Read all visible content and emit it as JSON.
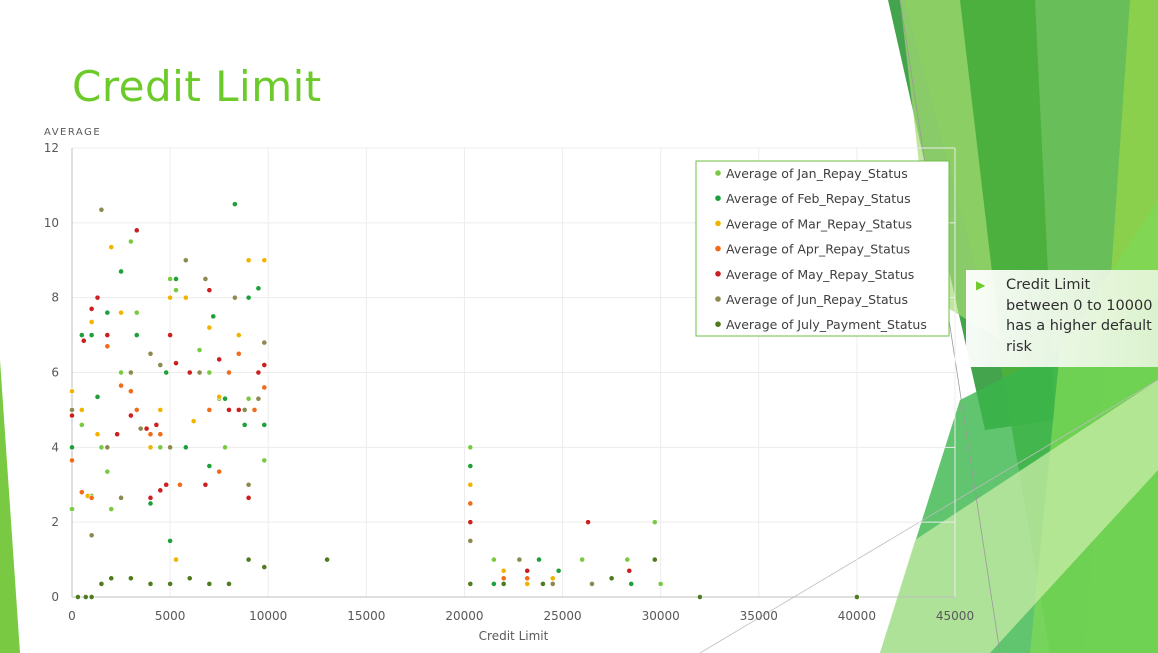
{
  "slide": {
    "title": "Credit Limit",
    "callout_text": "Credit Limit between 0 to 10000 has a higher default risk"
  },
  "colors": {
    "title": "#6ccb2b",
    "deco_dark": "#2f9a3a",
    "deco_mid": "#4db33c",
    "deco_light": "#8fd24a",
    "deco_pale": "#c9eca8"
  },
  "chart_data": {
    "type": "scatter",
    "title": "",
    "ylabel": "AVERAGE",
    "xlabel": "Credit Limit",
    "xlim": [
      0,
      45000
    ],
    "ylim": [
      0,
      12
    ],
    "x_ticks": [
      "0",
      "5000",
      "10000",
      "15000",
      "20000",
      "25000",
      "30000",
      "35000",
      "40000",
      "45000"
    ],
    "y_ticks": [
      "0",
      "2",
      "4",
      "6",
      "8",
      "10",
      "12"
    ],
    "grid": true,
    "legend_position": "top-right",
    "series": [
      {
        "name": "Average of Jan_Repay_Status",
        "color": "#7ac943",
        "points": [
          [
            0,
            2.35
          ],
          [
            500,
            4.6
          ],
          [
            1000,
            2.7
          ],
          [
            1500,
            4.0
          ],
          [
            1800,
            3.35
          ],
          [
            2000,
            2.35
          ],
          [
            2500,
            6.0
          ],
          [
            3000,
            9.5
          ],
          [
            3300,
            7.6
          ],
          [
            4000,
            4.0
          ],
          [
            4500,
            4.0
          ],
          [
            5000,
            8.5
          ],
          [
            5300,
            8.2
          ],
          [
            6500,
            6.6
          ],
          [
            7000,
            6.0
          ],
          [
            7500,
            5.3
          ],
          [
            7800,
            4.0
          ],
          [
            8000,
            6.0
          ],
          [
            9000,
            5.3
          ],
          [
            9800,
            3.65
          ],
          [
            20300,
            4.0
          ],
          [
            21500,
            1.0
          ],
          [
            23800,
            1.0
          ],
          [
            26000,
            1.0
          ],
          [
            28300,
            1.0
          ],
          [
            29700,
            2.0
          ],
          [
            30000,
            0.35
          ]
        ]
      },
      {
        "name": "Average of Feb_Repay_Status",
        "color": "#1ea03a",
        "points": [
          [
            0,
            4.0
          ],
          [
            500,
            7.0
          ],
          [
            1000,
            7.0
          ],
          [
            1300,
            5.35
          ],
          [
            1800,
            7.6
          ],
          [
            2500,
            8.7
          ],
          [
            3300,
            7.0
          ],
          [
            4000,
            2.5
          ],
          [
            4800,
            6.0
          ],
          [
            5000,
            1.5
          ],
          [
            5300,
            8.5
          ],
          [
            5800,
            4.0
          ],
          [
            6500,
            6.0
          ],
          [
            7000,
            3.5
          ],
          [
            7200,
            7.5
          ],
          [
            7800,
            5.3
          ],
          [
            8300,
            10.5
          ],
          [
            8800,
            4.6
          ],
          [
            9000,
            8.0
          ],
          [
            9500,
            8.25
          ],
          [
            9800,
            4.6
          ],
          [
            20300,
            3.5
          ],
          [
            21500,
            0.35
          ],
          [
            23800,
            1.0
          ],
          [
            24800,
            0.7
          ],
          [
            28500,
            0.35
          ]
        ]
      },
      {
        "name": "Average of Mar_Repay_Status",
        "color": "#f0b400",
        "points": [
          [
            0,
            5.5
          ],
          [
            500,
            5.0
          ],
          [
            800,
            2.7
          ],
          [
            1000,
            7.35
          ],
          [
            1300,
            4.35
          ],
          [
            2000,
            9.35
          ],
          [
            2500,
            7.6
          ],
          [
            3000,
            6.0
          ],
          [
            3300,
            5.0
          ],
          [
            4000,
            4.0
          ],
          [
            4500,
            5.0
          ],
          [
            5000,
            8.0
          ],
          [
            5300,
            1.0
          ],
          [
            5800,
            8.0
          ],
          [
            6200,
            4.7
          ],
          [
            7000,
            7.2
          ],
          [
            7500,
            5.35
          ],
          [
            8000,
            6.0
          ],
          [
            8500,
            7.0
          ],
          [
            9000,
            9.0
          ],
          [
            9800,
            9.0
          ],
          [
            20300,
            3.0
          ],
          [
            22000,
            0.7
          ],
          [
            23200,
            0.35
          ],
          [
            24500,
            0.5
          ]
        ]
      },
      {
        "name": "Average of Apr_Repay_Status",
        "color": "#f26b1a",
        "points": [
          [
            0,
            3.65
          ],
          [
            500,
            2.8
          ],
          [
            1000,
            2.65
          ],
          [
            1800,
            6.7
          ],
          [
            2500,
            5.65
          ],
          [
            3000,
            5.5
          ],
          [
            3300,
            5.0
          ],
          [
            4000,
            4.35
          ],
          [
            4500,
            4.35
          ],
          [
            5000,
            4.0
          ],
          [
            5500,
            3.0
          ],
          [
            6500,
            6.0
          ],
          [
            7000,
            5.0
          ],
          [
            7500,
            3.35
          ],
          [
            8000,
            6.0
          ],
          [
            8500,
            6.5
          ],
          [
            9300,
            5.0
          ],
          [
            9800,
            5.6
          ],
          [
            20300,
            2.5
          ],
          [
            22000,
            0.5
          ],
          [
            23200,
            0.5
          ]
        ]
      },
      {
        "name": "Average of May_Repay_Status",
        "color": "#cc1f1f",
        "points": [
          [
            0,
            4.85
          ],
          [
            600,
            6.85
          ],
          [
            1000,
            7.7
          ],
          [
            1300,
            8.0
          ],
          [
            1800,
            7.0
          ],
          [
            2300,
            4.35
          ],
          [
            3000,
            4.85
          ],
          [
            3300,
            9.8
          ],
          [
            3800,
            4.5
          ],
          [
            4000,
            2.65
          ],
          [
            4300,
            4.6
          ],
          [
            4500,
            2.85
          ],
          [
            4800,
            3.0
          ],
          [
            5000,
            7.0
          ],
          [
            5300,
            6.25
          ],
          [
            6000,
            6.0
          ],
          [
            6800,
            3.0
          ],
          [
            7000,
            8.2
          ],
          [
            7500,
            6.35
          ],
          [
            8000,
            5.0
          ],
          [
            8500,
            5.0
          ],
          [
            9000,
            2.65
          ],
          [
            9500,
            6.0
          ],
          [
            9800,
            6.2
          ],
          [
            20300,
            2.0
          ],
          [
            23200,
            0.7
          ],
          [
            26300,
            2.0
          ],
          [
            28400,
            0.7
          ]
        ]
      },
      {
        "name": "Average of Jun_Repay_Status",
        "color": "#8c8a4f",
        "points": [
          [
            0,
            5.0
          ],
          [
            1000,
            1.65
          ],
          [
            1500,
            10.35
          ],
          [
            1800,
            4.0
          ],
          [
            2500,
            2.65
          ],
          [
            3000,
            6.0
          ],
          [
            3500,
            4.5
          ],
          [
            4000,
            6.5
          ],
          [
            4500,
            6.2
          ],
          [
            5000,
            4.0
          ],
          [
            5800,
            9.0
          ],
          [
            6500,
            6.0
          ],
          [
            6800,
            8.5
          ],
          [
            8300,
            8.0
          ],
          [
            8800,
            5.0
          ],
          [
            9000,
            3.0
          ],
          [
            9500,
            5.3
          ],
          [
            9800,
            6.8
          ],
          [
            20300,
            1.5
          ],
          [
            22800,
            1.0
          ],
          [
            24500,
            0.35
          ],
          [
            26500,
            0.35
          ]
        ]
      },
      {
        "name": "Average of July_Payment_Status",
        "color": "#4f7a1e",
        "points": [
          [
            300,
            0
          ],
          [
            700,
            0
          ],
          [
            1000,
            0
          ],
          [
            1500,
            0.35
          ],
          [
            2000,
            0.5
          ],
          [
            3000,
            0.5
          ],
          [
            4000,
            0.35
          ],
          [
            5000,
            0.35
          ],
          [
            6000,
            0.5
          ],
          [
            7000,
            0.35
          ],
          [
            8000,
            0.35
          ],
          [
            9000,
            1.0
          ],
          [
            9800,
            0.8
          ],
          [
            13000,
            1.0
          ],
          [
            20300,
            0.35
          ],
          [
            22000,
            0.35
          ],
          [
            24000,
            0.35
          ],
          [
            27500,
            0.5
          ],
          [
            29700,
            1.0
          ],
          [
            32000,
            0
          ],
          [
            40000,
            0
          ]
        ]
      }
    ]
  }
}
